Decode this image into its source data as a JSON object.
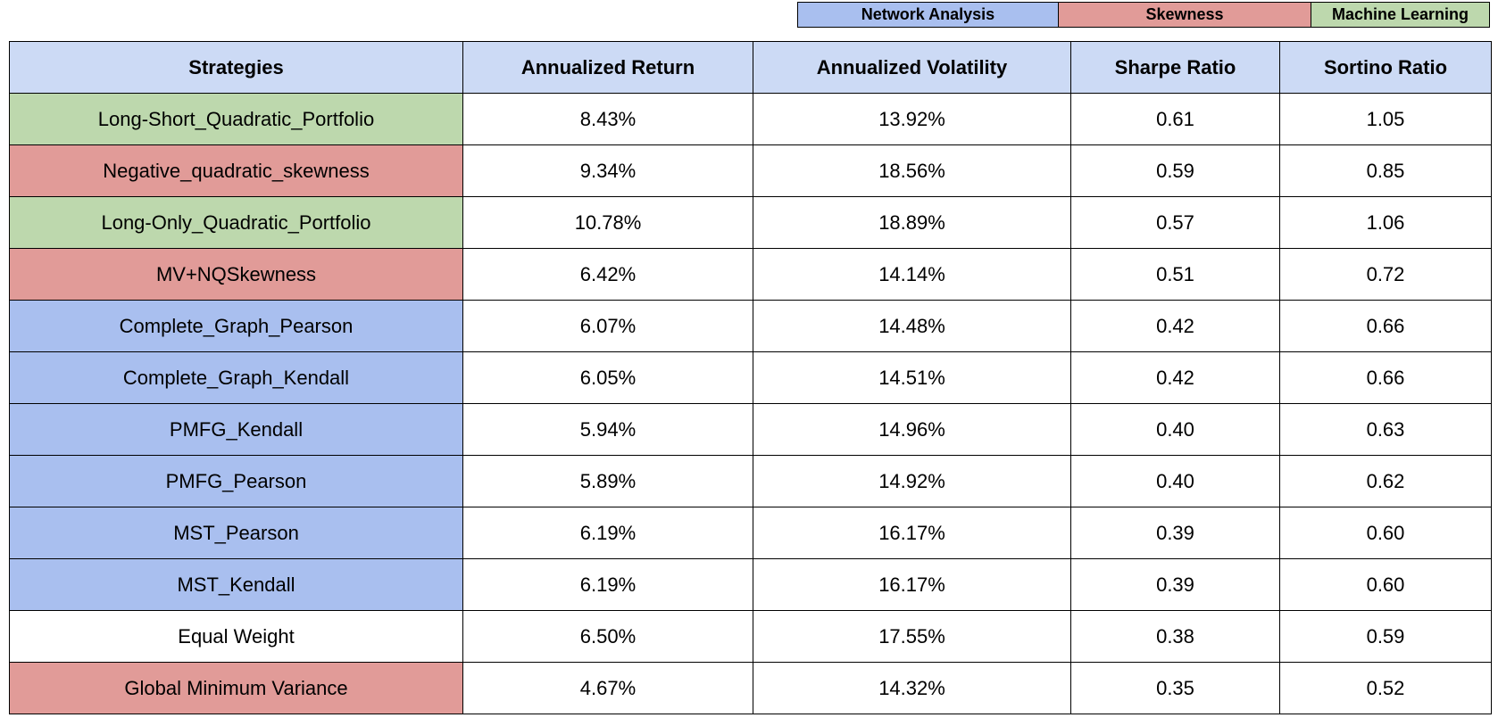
{
  "colors": {
    "network": "#a9bfef",
    "skewness": "#e19b98",
    "ml": "#bdd8ad",
    "header_bg": "#ccdaf5",
    "none": "#ffffff"
  },
  "legend": [
    {
      "label": "Network Analysis",
      "group": "network"
    },
    {
      "label": "Skewness",
      "group": "skewness"
    },
    {
      "label": "Machine Learning",
      "group": "ml"
    }
  ],
  "chart_data": {
    "type": "table",
    "columns": [
      "Strategies",
      "Annualized Return",
      "Annualized Volatility",
      "Sharpe Ratio",
      "Sortino Ratio"
    ],
    "rows": [
      {
        "strategy": "Long-Short_Quadratic_Portfolio",
        "group": "ml",
        "return": "8.43%",
        "volatility": "13.92%",
        "sharpe": "0.61",
        "sortino": "1.05"
      },
      {
        "strategy": "Negative_quadratic_skewness",
        "group": "skewness",
        "return": "9.34%",
        "volatility": "18.56%",
        "sharpe": "0.59",
        "sortino": "0.85"
      },
      {
        "strategy": "Long-Only_Quadratic_Portfolio",
        "group": "ml",
        "return": "10.78%",
        "volatility": "18.89%",
        "sharpe": "0.57",
        "sortino": "1.06"
      },
      {
        "strategy": "MV+NQSkewness",
        "group": "skewness",
        "return": "6.42%",
        "volatility": "14.14%",
        "sharpe": "0.51",
        "sortino": "0.72"
      },
      {
        "strategy": "Complete_Graph_Pearson",
        "group": "network",
        "return": "6.07%",
        "volatility": "14.48%",
        "sharpe": "0.42",
        "sortino": "0.66"
      },
      {
        "strategy": "Complete_Graph_Kendall",
        "group": "network",
        "return": "6.05%",
        "volatility": "14.51%",
        "sharpe": "0.42",
        "sortino": "0.66"
      },
      {
        "strategy": "PMFG_Kendall",
        "group": "network",
        "return": "5.94%",
        "volatility": "14.96%",
        "sharpe": "0.40",
        "sortino": "0.63"
      },
      {
        "strategy": "PMFG_Pearson",
        "group": "network",
        "return": "5.89%",
        "volatility": "14.92%",
        "sharpe": "0.40",
        "sortino": "0.62"
      },
      {
        "strategy": "MST_Pearson",
        "group": "network",
        "return": "6.19%",
        "volatility": "16.17%",
        "sharpe": "0.39",
        "sortino": "0.60"
      },
      {
        "strategy": "MST_Kendall",
        "group": "network",
        "return": "6.19%",
        "volatility": "16.17%",
        "sharpe": "0.39",
        "sortino": "0.60"
      },
      {
        "strategy": "Equal Weight",
        "group": "none",
        "return": "6.50%",
        "volatility": "17.55%",
        "sharpe": "0.38",
        "sortino": "0.59"
      },
      {
        "strategy": "Global Minimum Variance",
        "group": "skewness",
        "return": "4.67%",
        "volatility": "14.32%",
        "sharpe": "0.35",
        "sortino": "0.52"
      }
    ]
  }
}
